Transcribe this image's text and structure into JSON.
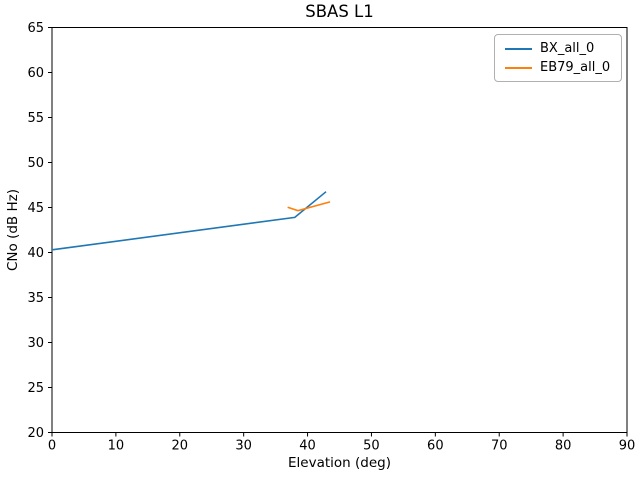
{
  "chart_data": {
    "type": "line",
    "title": "SBAS L1",
    "xlabel": "Elevation (deg)",
    "ylabel": "CNo (dB Hz)",
    "xlim": [
      0,
      90
    ],
    "ylim": [
      20,
      65
    ],
    "xticks": [
      0,
      10,
      20,
      30,
      40,
      50,
      60,
      70,
      80,
      90
    ],
    "yticks": [
      20,
      25,
      30,
      35,
      40,
      45,
      50,
      55,
      60,
      65
    ],
    "grid": false,
    "legend_position": "upper right",
    "series": [
      {
        "name": "BX_all_0",
        "color": "#1f77b4",
        "points": [
          [
            0,
            40.3
          ],
          [
            38,
            43.9
          ],
          [
            42.8,
            46.7
          ]
        ]
      },
      {
        "name": "EB79_all_0",
        "color": "#ff7f0e",
        "points": [
          [
            37,
            45.0
          ],
          [
            38.5,
            44.65
          ],
          [
            43.4,
            45.6
          ]
        ]
      }
    ]
  },
  "colors": {
    "axis": "#000000",
    "background": "#ffffff"
  }
}
